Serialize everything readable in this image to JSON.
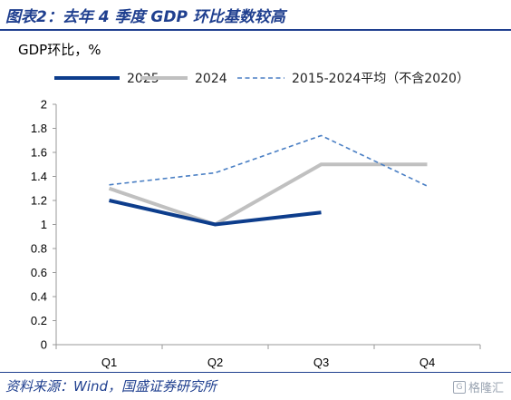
{
  "figure_title": "图表2：去年 4 季度 GDP 环比基数较高",
  "source": "资料来源：Wind，国盛证券研究所",
  "watermark": "格隆汇",
  "chart_data": {
    "type": "line",
    "unit_label": "GDP环比，%",
    "categories": [
      "Q1",
      "Q2",
      "Q3",
      "Q4"
    ],
    "ylim": [
      0,
      2
    ],
    "yticks": [
      "0",
      "0.2",
      "0.4",
      "0.6",
      "0.8",
      "1",
      "1.2",
      "1.4",
      "1.6",
      "1.8",
      "2"
    ],
    "ytick_values": [
      0,
      0.2,
      0.4,
      0.6,
      0.8,
      1,
      1.2,
      1.4,
      1.6,
      1.8,
      2
    ],
    "grid": false,
    "legend_position": "top",
    "series": [
      {
        "name": "2025",
        "values": [
          1.2,
          1.0,
          1.1,
          null
        ],
        "color": "#0d3d8c",
        "style": "solid-thick"
      },
      {
        "name": "2024",
        "values": [
          1.3,
          1.0,
          1.5,
          1.5
        ],
        "color": "#c0c0c0",
        "style": "solid-thick"
      },
      {
        "name": "2015-2024平均（不含2020）",
        "values": [
          1.33,
          1.43,
          1.74,
          1.32
        ],
        "color": "#4a7fc4",
        "style": "dashed"
      }
    ]
  }
}
